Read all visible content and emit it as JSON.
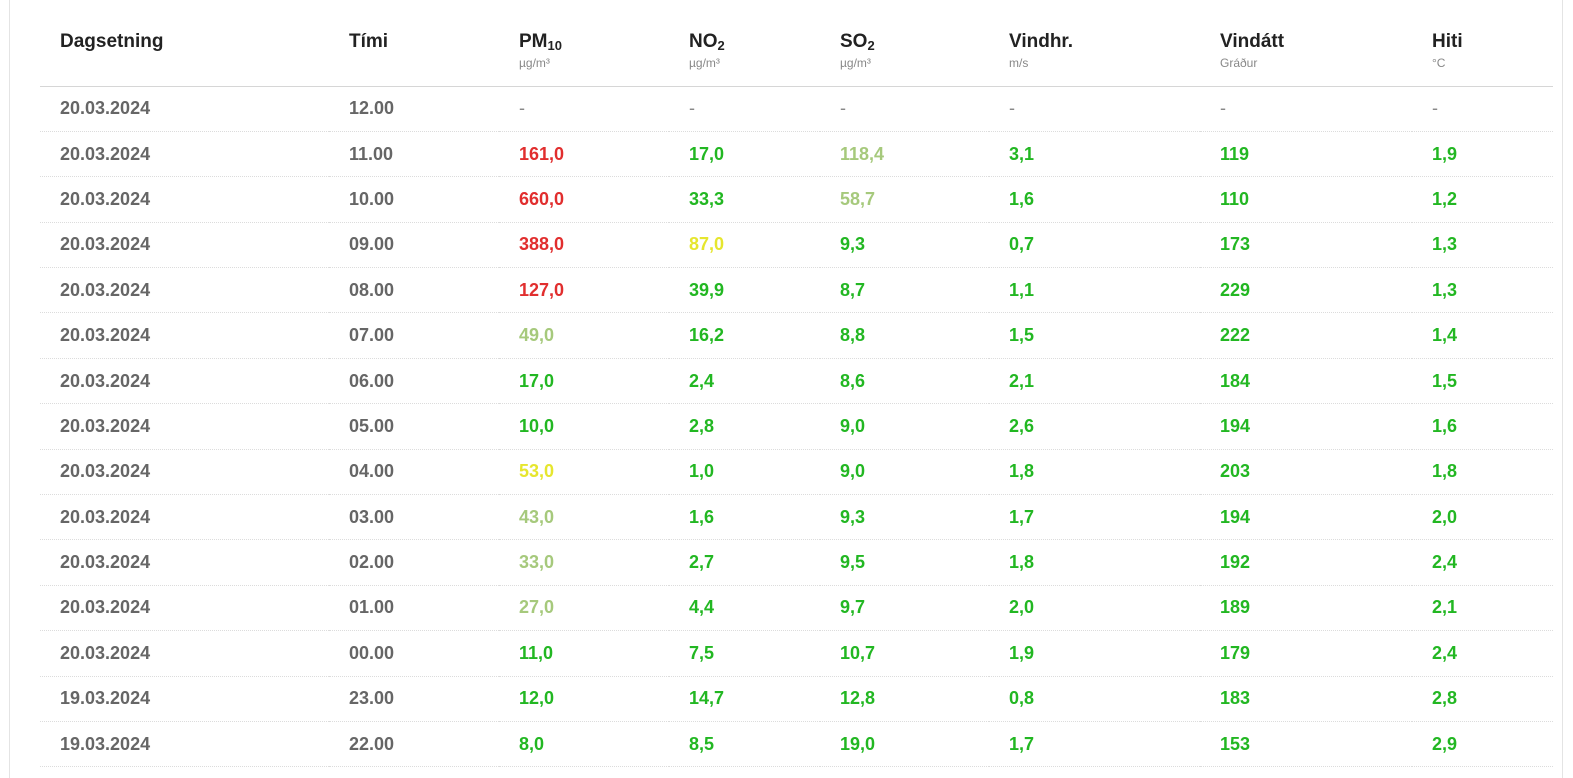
{
  "colors": {
    "red": "#e12e2e",
    "green": "#22b722",
    "lightgreen": "#a6c97c",
    "yellow": "#e6e62e",
    "muted": "#666666"
  },
  "table": {
    "columns": [
      {
        "key": "date",
        "label": "Dagsetning",
        "sub": "",
        "unit": ""
      },
      {
        "key": "time",
        "label": "Tími",
        "sub": "",
        "unit": ""
      },
      {
        "key": "pm10",
        "label": "PM",
        "sub": "10",
        "unit": "µg/m³"
      },
      {
        "key": "no2",
        "label": "NO",
        "sub": "2",
        "unit": "µg/m³"
      },
      {
        "key": "so2",
        "label": "SO",
        "sub": "2",
        "unit": "µg/m³"
      },
      {
        "key": "wind_speed",
        "label": "Vindhr.",
        "sub": "",
        "unit": "m/s"
      },
      {
        "key": "wind_dir",
        "label": "Vindátt",
        "sub": "",
        "unit": "Gráður"
      },
      {
        "key": "temp",
        "label": "Hiti",
        "sub": "",
        "unit": "°C"
      }
    ],
    "rows": [
      {
        "date": "20.03.2024",
        "time": "12.00",
        "values": [
          {
            "v": "-",
            "level": "dash"
          },
          {
            "v": "-",
            "level": "dash"
          },
          {
            "v": "-",
            "level": "dash"
          },
          {
            "v": "-",
            "level": "dash"
          },
          {
            "v": "-",
            "level": "dash"
          },
          {
            "v": "-",
            "level": "dash"
          }
        ]
      },
      {
        "date": "20.03.2024",
        "time": "11.00",
        "values": [
          {
            "v": "161,0",
            "level": "red"
          },
          {
            "v": "17,0",
            "level": "green"
          },
          {
            "v": "118,4",
            "level": "lightgreen"
          },
          {
            "v": "3,1",
            "level": "green"
          },
          {
            "v": "119",
            "level": "green"
          },
          {
            "v": "1,9",
            "level": "green"
          }
        ]
      },
      {
        "date": "20.03.2024",
        "time": "10.00",
        "values": [
          {
            "v": "660,0",
            "level": "red"
          },
          {
            "v": "33,3",
            "level": "green"
          },
          {
            "v": "58,7",
            "level": "lightgreen"
          },
          {
            "v": "1,6",
            "level": "green"
          },
          {
            "v": "110",
            "level": "green"
          },
          {
            "v": "1,2",
            "level": "green"
          }
        ]
      },
      {
        "date": "20.03.2024",
        "time": "09.00",
        "values": [
          {
            "v": "388,0",
            "level": "red"
          },
          {
            "v": "87,0",
            "level": "yellow"
          },
          {
            "v": "9,3",
            "level": "green"
          },
          {
            "v": "0,7",
            "level": "green"
          },
          {
            "v": "173",
            "level": "green"
          },
          {
            "v": "1,3",
            "level": "green"
          }
        ]
      },
      {
        "date": "20.03.2024",
        "time": "08.00",
        "values": [
          {
            "v": "127,0",
            "level": "red"
          },
          {
            "v": "39,9",
            "level": "green"
          },
          {
            "v": "8,7",
            "level": "green"
          },
          {
            "v": "1,1",
            "level": "green"
          },
          {
            "v": "229",
            "level": "green"
          },
          {
            "v": "1,3",
            "level": "green"
          }
        ]
      },
      {
        "date": "20.03.2024",
        "time": "07.00",
        "values": [
          {
            "v": "49,0",
            "level": "lightgreen"
          },
          {
            "v": "16,2",
            "level": "green"
          },
          {
            "v": "8,8",
            "level": "green"
          },
          {
            "v": "1,5",
            "level": "green"
          },
          {
            "v": "222",
            "level": "green"
          },
          {
            "v": "1,4",
            "level": "green"
          }
        ]
      },
      {
        "date": "20.03.2024",
        "time": "06.00",
        "values": [
          {
            "v": "17,0",
            "level": "green"
          },
          {
            "v": "2,4",
            "level": "green"
          },
          {
            "v": "8,6",
            "level": "green"
          },
          {
            "v": "2,1",
            "level": "green"
          },
          {
            "v": "184",
            "level": "green"
          },
          {
            "v": "1,5",
            "level": "green"
          }
        ]
      },
      {
        "date": "20.03.2024",
        "time": "05.00",
        "values": [
          {
            "v": "10,0",
            "level": "green"
          },
          {
            "v": "2,8",
            "level": "green"
          },
          {
            "v": "9,0",
            "level": "green"
          },
          {
            "v": "2,6",
            "level": "green"
          },
          {
            "v": "194",
            "level": "green"
          },
          {
            "v": "1,6",
            "level": "green"
          }
        ]
      },
      {
        "date": "20.03.2024",
        "time": "04.00",
        "values": [
          {
            "v": "53,0",
            "level": "yellow"
          },
          {
            "v": "1,0",
            "level": "green"
          },
          {
            "v": "9,0",
            "level": "green"
          },
          {
            "v": "1,8",
            "level": "green"
          },
          {
            "v": "203",
            "level": "green"
          },
          {
            "v": "1,8",
            "level": "green"
          }
        ]
      },
      {
        "date": "20.03.2024",
        "time": "03.00",
        "values": [
          {
            "v": "43,0",
            "level": "lightgreen"
          },
          {
            "v": "1,6",
            "level": "green"
          },
          {
            "v": "9,3",
            "level": "green"
          },
          {
            "v": "1,7",
            "level": "green"
          },
          {
            "v": "194",
            "level": "green"
          },
          {
            "v": "2,0",
            "level": "green"
          }
        ]
      },
      {
        "date": "20.03.2024",
        "time": "02.00",
        "values": [
          {
            "v": "33,0",
            "level": "lightgreen"
          },
          {
            "v": "2,7",
            "level": "green"
          },
          {
            "v": "9,5",
            "level": "green"
          },
          {
            "v": "1,8",
            "level": "green"
          },
          {
            "v": "192",
            "level": "green"
          },
          {
            "v": "2,4",
            "level": "green"
          }
        ]
      },
      {
        "date": "20.03.2024",
        "time": "01.00",
        "values": [
          {
            "v": "27,0",
            "level": "lightgreen"
          },
          {
            "v": "4,4",
            "level": "green"
          },
          {
            "v": "9,7",
            "level": "green"
          },
          {
            "v": "2,0",
            "level": "green"
          },
          {
            "v": "189",
            "level": "green"
          },
          {
            "v": "2,1",
            "level": "green"
          }
        ]
      },
      {
        "date": "20.03.2024",
        "time": "00.00",
        "values": [
          {
            "v": "11,0",
            "level": "green"
          },
          {
            "v": "7,5",
            "level": "green"
          },
          {
            "v": "10,7",
            "level": "green"
          },
          {
            "v": "1,9",
            "level": "green"
          },
          {
            "v": "179",
            "level": "green"
          },
          {
            "v": "2,4",
            "level": "green"
          }
        ]
      },
      {
        "date": "19.03.2024",
        "time": "23.00",
        "values": [
          {
            "v": "12,0",
            "level": "green"
          },
          {
            "v": "14,7",
            "level": "green"
          },
          {
            "v": "12,8",
            "level": "green"
          },
          {
            "v": "0,8",
            "level": "green"
          },
          {
            "v": "183",
            "level": "green"
          },
          {
            "v": "2,8",
            "level": "green"
          }
        ]
      },
      {
        "date": "19.03.2024",
        "time": "22.00",
        "values": [
          {
            "v": "8,0",
            "level": "green"
          },
          {
            "v": "8,5",
            "level": "green"
          },
          {
            "v": "19,0",
            "level": "green"
          },
          {
            "v": "1,7",
            "level": "green"
          },
          {
            "v": "153",
            "level": "green"
          },
          {
            "v": "2,9",
            "level": "green"
          }
        ]
      }
    ]
  }
}
